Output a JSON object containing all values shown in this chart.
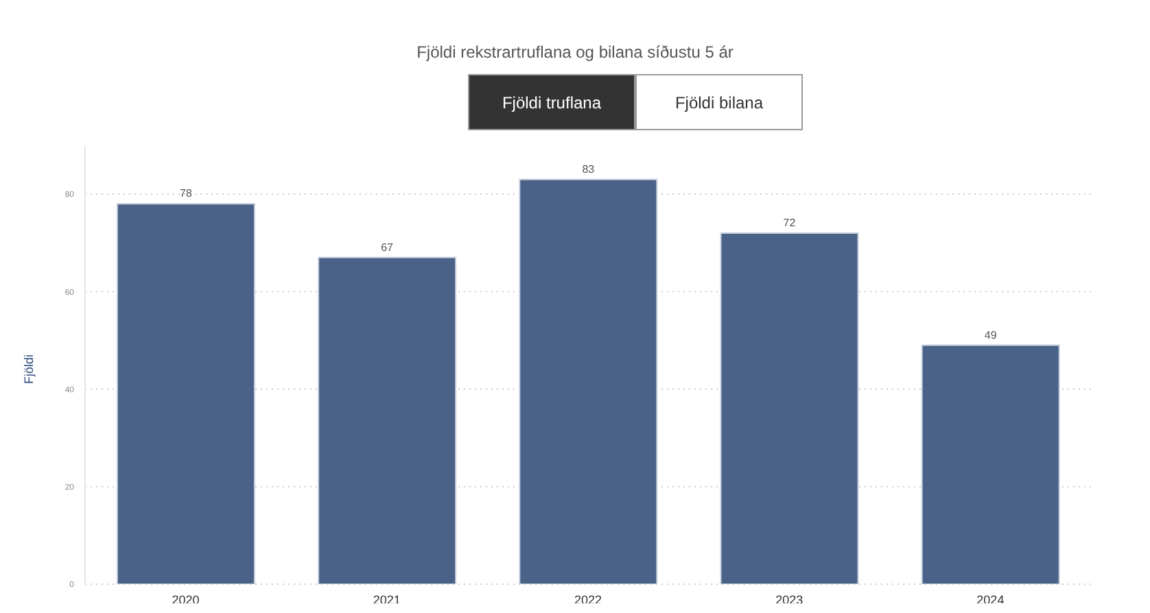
{
  "chart_data": {
    "type": "bar",
    "title": "Fjöldi rekstrartruflana og bilana síðustu 5 ár",
    "annotations": [
      "Fjöldi truflana",
      "Fjöldi bilana"
    ],
    "ylabel": "Fjöldi",
    "categories": [
      "2020",
      "2021",
      "2022",
      "2023",
      "2024"
    ],
    "values": [
      78,
      67,
      83,
      72,
      49
    ],
    "color": "#4a6287",
    "ylim": [
      0,
      90
    ],
    "yticks": [
      0,
      20,
      40,
      60,
      80
    ],
    "grid": "y",
    "data_labels": true
  }
}
